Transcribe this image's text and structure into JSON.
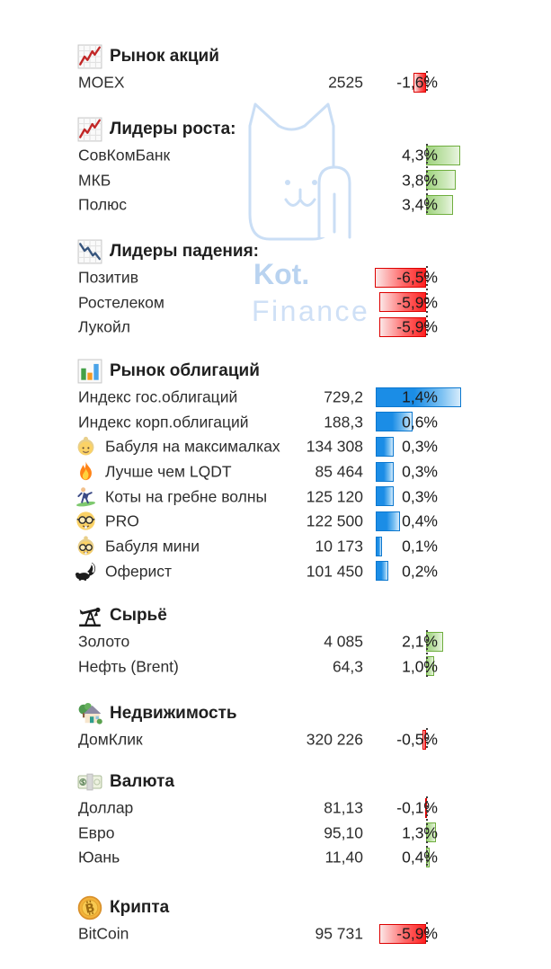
{
  "watermark": {
    "line1": "Kot.",
    "line2": "Finance"
  },
  "colors": {
    "positive_bar": "#70ad47",
    "negative_bar": "#e00000",
    "bond_bar": "#1787d8",
    "watermark_blue": "#cadef5",
    "text": "#2e2e2e"
  },
  "chart_data": [
    {
      "id": "stocks",
      "type": "table",
      "title": "Рынок акций",
      "title_icon": "chart-increasing-icon",
      "bar_palette": "red-green",
      "axis": "center",
      "columns": [
        "name",
        "value",
        "change"
      ],
      "rows": [
        {
          "icon": "",
          "name": "MOEX",
          "value": "2525",
          "change": "-1,6%",
          "change_pct": -1.6
        }
      ]
    },
    {
      "id": "gainers",
      "type": "table",
      "title": "Лидеры роста:",
      "title_icon": "chart-increasing-icon",
      "bar_palette": "red-green",
      "axis": "center",
      "columns": [
        "name",
        "change"
      ],
      "rows": [
        {
          "icon": "",
          "name": "СовКомБанк",
          "value": "",
          "change": "4,3%",
          "change_pct": 4.3
        },
        {
          "icon": "",
          "name": "МКБ",
          "value": "",
          "change": "3,8%",
          "change_pct": 3.8
        },
        {
          "icon": "",
          "name": "Полюс",
          "value": "",
          "change": "3,4%",
          "change_pct": 3.4
        }
      ]
    },
    {
      "id": "losers",
      "type": "table",
      "title": "Лидеры падения:",
      "title_icon": "chart-decreasing-icon",
      "bar_palette": "red-green",
      "axis": "center",
      "columns": [
        "name",
        "change"
      ],
      "rows": [
        {
          "icon": "",
          "name": "Позитив",
          "value": "",
          "change": "-6,5%",
          "change_pct": -6.5
        },
        {
          "icon": "",
          "name": "Ростелеком",
          "value": "",
          "change": "-5,9%",
          "change_pct": -5.9
        },
        {
          "icon": "",
          "name": "Лукойл",
          "value": "",
          "change": "-5,9%",
          "change_pct": -5.9
        }
      ]
    },
    {
      "id": "bonds",
      "type": "table",
      "title": "Рынок облигаций",
      "title_icon": "bar-chart-icon",
      "bar_palette": "blue",
      "axis": "left",
      "columns": [
        "name",
        "value",
        "change"
      ],
      "rows": [
        {
          "icon": "",
          "name": "Индекс гос.облигаций",
          "value": "729,2",
          "change": "1,4%",
          "change_pct": 1.4
        },
        {
          "icon": "",
          "name": "Индекс корп.облигаций",
          "value": "188,3",
          "change": "0,6%",
          "change_pct": 0.6
        },
        {
          "icon": "grandma-icon",
          "name": "Бабуля на максималках",
          "value": "134 308",
          "change": "0,3%",
          "change_pct": 0.3
        },
        {
          "icon": "fire-icon",
          "name": "Лучше чем LQDT",
          "value": "85 464",
          "change": "0,3%",
          "change_pct": 0.3
        },
        {
          "icon": "surfer-icon",
          "name": "Коты на гребне волны",
          "value": "125 120",
          "change": "0,3%",
          "change_pct": 0.3
        },
        {
          "icon": "nerd-face-icon",
          "name": "PRO",
          "value": "122 500",
          "change": "0,4%",
          "change_pct": 0.4
        },
        {
          "icon": "grandma-nerd-icon",
          "name": "Бабуля мини",
          "value": "10 173",
          "change": "0,1%",
          "change_pct": 0.1
        },
        {
          "icon": "skunk-icon",
          "name": "Оферист",
          "value": "101 450",
          "change": "0,2%",
          "change_pct": 0.2
        }
      ]
    },
    {
      "id": "commodities",
      "type": "table",
      "title": "Сырьё",
      "title_icon": "oil-pump-icon",
      "bar_palette": "red-green",
      "axis": "center",
      "columns": [
        "name",
        "value",
        "change"
      ],
      "rows": [
        {
          "icon": "",
          "name": "Золото",
          "value": "4 085",
          "change": "2,1%",
          "change_pct": 2.1
        },
        {
          "icon": "",
          "name": "Нефть (Brent)",
          "value": "64,3",
          "change": "1,0%",
          "change_pct": 1.0
        }
      ]
    },
    {
      "id": "real-estate",
      "type": "table",
      "title": "Недвижимость",
      "title_icon": "house-with-garden-icon",
      "bar_palette": "red-green",
      "axis": "center",
      "columns": [
        "name",
        "value",
        "change"
      ],
      "rows": [
        {
          "icon": "",
          "name": "ДомКлик",
          "value": "320 226",
          "change": "-0,5%",
          "change_pct": -0.5
        }
      ]
    },
    {
      "id": "currency",
      "type": "table",
      "title": "Валюта",
      "title_icon": "dollar-banknote-icon",
      "bar_palette": "red-green",
      "axis": "center",
      "columns": [
        "name",
        "value",
        "change"
      ],
      "rows": [
        {
          "icon": "",
          "name": "Доллар",
          "value": "81,13",
          "change": "-0,1%",
          "change_pct": -0.1
        },
        {
          "icon": "",
          "name": "Евро",
          "value": "95,10",
          "change": "1,3%",
          "change_pct": 1.3
        },
        {
          "icon": "",
          "name": "Юань",
          "value": "11,40",
          "change": "0,4%",
          "change_pct": 0.4
        }
      ]
    },
    {
      "id": "crypto",
      "type": "table",
      "title": "Крипта",
      "title_icon": "bitcoin-coin-icon",
      "bar_palette": "red-green",
      "axis": "center",
      "columns": [
        "name",
        "value",
        "change"
      ],
      "rows": [
        {
          "icon": "",
          "name": "BitCoin",
          "value": "95 731",
          "change": "-5,9%",
          "change_pct": -5.9
        }
      ]
    }
  ]
}
